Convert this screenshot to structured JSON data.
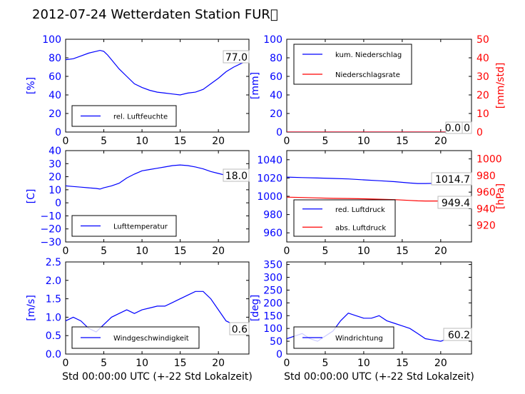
{
  "title": "2012-07-24 Wetterdaten Station FUR\u0000",
  "chart_data": [
    {
      "type": "line",
      "panel": "top-left",
      "ylabel": "[%]",
      "xlim": [
        0,
        24
      ],
      "ylim": [
        0,
        100
      ],
      "xticks": [
        "0",
        "5",
        "10",
        "15",
        "20"
      ],
      "yticks": [
        "0",
        "20",
        "40",
        "60",
        "80",
        "100"
      ],
      "series": [
        {
          "name": "rel. Luftfeuchte",
          "color": "#0000ff",
          "x": [
            0,
            1,
            2,
            3,
            4,
            4.5,
            5,
            5.5,
            6,
            7,
            8,
            9,
            10,
            11,
            12,
            13,
            14,
            15,
            16,
            17,
            18,
            19,
            20,
            21,
            22,
            23,
            24
          ],
          "values": [
            78,
            79,
            82,
            85,
            87,
            88,
            87,
            83,
            78,
            68,
            60,
            52,
            48,
            45,
            43,
            42,
            41,
            40,
            42,
            43,
            46,
            52,
            58,
            65,
            70,
            74,
            77
          ]
        }
      ],
      "annotation": "77.0",
      "legend": "lower-left"
    },
    {
      "type": "line",
      "panel": "top-right",
      "ylabel": "[mm]",
      "ylabel2": "[mm/std]",
      "xlim": [
        0,
        24
      ],
      "ylim": [
        0,
        100
      ],
      "ylim2": [
        0,
        50
      ],
      "xticks": [
        "0",
        "5",
        "10",
        "15",
        "20"
      ],
      "yticks": [
        "0",
        "20",
        "40",
        "60",
        "80",
        "100"
      ],
      "yticks2": [
        "0",
        "10",
        "20",
        "30",
        "40",
        "50"
      ],
      "series": [
        {
          "name": "kum. Niederschlag",
          "color": "#0000ff",
          "x": [
            0,
            24
          ],
          "values": [
            0,
            0
          ]
        },
        {
          "name": "Niederschlagsrate",
          "color": "#ff0000",
          "x": [
            0,
            24
          ],
          "values": [
            0,
            0
          ],
          "axis": "right"
        }
      ],
      "annotation": "0.0",
      "annotation2": "0.0",
      "legend": "upper-left"
    },
    {
      "type": "line",
      "panel": "middle-left",
      "ylabel": "[C]",
      "xlim": [
        0,
        24
      ],
      "ylim": [
        -30,
        40
      ],
      "xticks": [
        "0",
        "5",
        "10",
        "15",
        "20"
      ],
      "yticks": [
        "−30",
        "−20",
        "−10",
        "0",
        "10",
        "20",
        "30",
        "40"
      ],
      "series": [
        {
          "name": "Lufttemperatur",
          "color": "#0000ff",
          "x": [
            0,
            1,
            2,
            3,
            4,
            4.5,
            5,
            6,
            7,
            8,
            9,
            10,
            11,
            12,
            13,
            14,
            15,
            16,
            17,
            18,
            19,
            20,
            21,
            22,
            23,
            24
          ],
          "values": [
            13,
            12.5,
            12,
            11.5,
            11,
            10.5,
            11.5,
            13,
            15,
            19,
            22,
            24.5,
            25.5,
            26.5,
            27.5,
            28.5,
            29,
            28.5,
            27.5,
            26,
            24,
            22.5,
            21,
            20,
            19,
            18
          ]
        }
      ],
      "annotation": "18.0",
      "legend": "lower-left"
    },
    {
      "type": "line",
      "panel": "middle-right",
      "ylabel2": "[hPa]",
      "xlim": [
        0,
        24
      ],
      "ylim": [
        950,
        1050
      ],
      "ylim2": [
        900,
        1010
      ],
      "xticks": [
        "0",
        "5",
        "10",
        "15",
        "20"
      ],
      "yticks": [
        "960",
        "980",
        "1000",
        "1020",
        "1040"
      ],
      "yticks2": [
        "920",
        "940",
        "960",
        "980",
        "1000"
      ],
      "series": [
        {
          "name": "red. Luftdruck",
          "color": "#0000ff",
          "x": [
            0,
            2,
            4,
            6,
            8,
            10,
            12,
            14,
            16,
            17,
            18,
            20,
            22,
            24
          ],
          "values": [
            1021,
            1020.5,
            1020,
            1019.5,
            1019,
            1018,
            1017,
            1016,
            1014.5,
            1014,
            1014,
            1014.3,
            1014.6,
            1014.7
          ]
        },
        {
          "name": "abs. Luftdruck",
          "color": "#ff0000",
          "axis": "right",
          "x": [
            0,
            2,
            4,
            6,
            8,
            10,
            12,
            14,
            16,
            17,
            18,
            20,
            22,
            24
          ],
          "values": [
            954,
            953.5,
            953,
            952.5,
            952.3,
            952,
            951.5,
            951,
            950,
            949.5,
            949.3,
            949.3,
            949.4,
            949.4
          ]
        }
      ],
      "annotation": "1014.7",
      "annotation2": "949.4",
      "legend": "lower-left"
    },
    {
      "type": "line",
      "panel": "bottom-left",
      "ylabel": "[m/s]",
      "xlabel": "Std 00:00:00 UTC (+-22 Std Lokalzeit)",
      "xlim": [
        0,
        24
      ],
      "ylim": [
        0,
        2.5
      ],
      "xticks": [
        "0",
        "5",
        "10",
        "15",
        "20"
      ],
      "yticks": [
        "0.0",
        "0.5",
        "1.0",
        "1.5",
        "2.0",
        "2.5"
      ],
      "series": [
        {
          "name": "Windgeschwindigkeit",
          "color": "#0000ff",
          "x": [
            0,
            1,
            2,
            3,
            4,
            5,
            6,
            7,
            8,
            9,
            10,
            11,
            12,
            13,
            14,
            15,
            16,
            17,
            18,
            19,
            20,
            21,
            22,
            23,
            24
          ],
          "values": [
            0.9,
            1.0,
            0.9,
            0.7,
            0.6,
            0.8,
            1.0,
            1.1,
            1.2,
            1.1,
            1.2,
            1.25,
            1.3,
            1.3,
            1.4,
            1.5,
            1.6,
            1.7,
            1.7,
            1.5,
            1.2,
            0.9,
            0.8,
            0.7,
            0.6
          ]
        }
      ],
      "annotation": "0.6",
      "legend": "lower-left"
    },
    {
      "type": "line",
      "panel": "bottom-right",
      "ylabel": "[deg]",
      "xlabel": "Std 00:00:00 UTC (+-22 Std Lokalzeit)",
      "xlim": [
        0,
        24
      ],
      "ylim": [
        0,
        360
      ],
      "xticks": [
        "0",
        "5",
        "10",
        "15",
        "20"
      ],
      "yticks": [
        "0",
        "50",
        "100",
        "150",
        "200",
        "250",
        "300",
        "350"
      ],
      "series": [
        {
          "name": "Windrichtung",
          "color": "#0000ff",
          "x": [
            0,
            1,
            2,
            3,
            4,
            5,
            6,
            7,
            8,
            9,
            10,
            11,
            12,
            13,
            14,
            15,
            16,
            17,
            18,
            19,
            20,
            21,
            22,
            23,
            24
          ],
          "values": [
            60,
            70,
            80,
            60,
            50,
            70,
            90,
            130,
            160,
            150,
            140,
            140,
            150,
            130,
            120,
            110,
            100,
            80,
            60,
            55,
            50,
            60,
            55,
            55,
            60
          ]
        }
      ],
      "annotation": "60.2",
      "legend": "lower-left"
    }
  ]
}
